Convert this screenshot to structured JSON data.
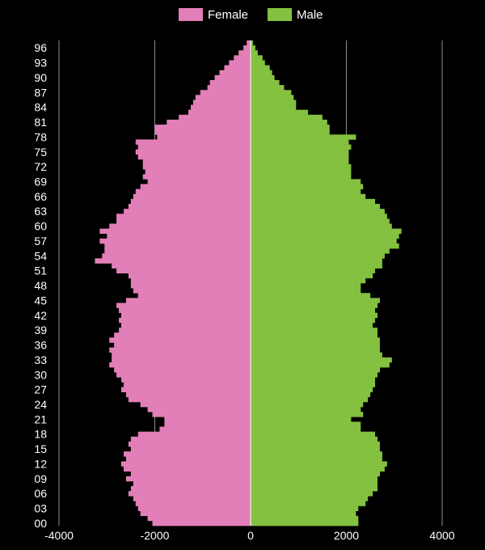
{
  "chart_data": {
    "type": "bar",
    "orientation": "horizontal",
    "layout": "population-pyramid",
    "title": "",
    "xlabel": "",
    "ylabel": "",
    "xlim": [
      -4000,
      4000
    ],
    "x_ticks": [
      -4000,
      -2000,
      0,
      2000,
      4000
    ],
    "x_tick_labels": [
      "-4000",
      "-2000",
      "0",
      "2000",
      "4000"
    ],
    "y_tick_labels": [
      "00",
      "03",
      "06",
      "09",
      "12",
      "15",
      "18",
      "21",
      "24",
      "27",
      "30",
      "33",
      "36",
      "39",
      "42",
      "45",
      "48",
      "51",
      "54",
      "57",
      "60",
      "63",
      "66",
      "69",
      "72",
      "75",
      "78",
      "81",
      "84",
      "87",
      "90",
      "93",
      "96"
    ],
    "grid": "vertical",
    "legend_position": "top-center",
    "ages": [
      0,
      1,
      2,
      3,
      4,
      5,
      6,
      7,
      8,
      9,
      10,
      11,
      12,
      13,
      14,
      15,
      16,
      17,
      18,
      19,
      20,
      21,
      22,
      23,
      24,
      25,
      26,
      27,
      28,
      29,
      30,
      31,
      32,
      33,
      34,
      35,
      36,
      37,
      38,
      39,
      40,
      41,
      42,
      43,
      44,
      45,
      46,
      47,
      48,
      49,
      50,
      51,
      52,
      53,
      54,
      55,
      56,
      57,
      58,
      59,
      60,
      61,
      62,
      63,
      64,
      65,
      66,
      67,
      68,
      69,
      70,
      71,
      72,
      73,
      74,
      75,
      76,
      77,
      78,
      79,
      80,
      81,
      82,
      83,
      84,
      85,
      86,
      87,
      88,
      89,
      90,
      91,
      92,
      93,
      94,
      95,
      96,
      97
    ],
    "series": [
      {
        "name": "Female",
        "color": "#e27fb8",
        "values": [
          -2050,
          -2150,
          -2300,
          -2350,
          -2400,
          -2450,
          -2550,
          -2500,
          -2450,
          -2600,
          -2500,
          -2650,
          -2700,
          -2600,
          -2650,
          -2500,
          -2550,
          -2500,
          -2350,
          -1900,
          -1800,
          -1800,
          -2050,
          -2150,
          -2300,
          -2550,
          -2600,
          -2700,
          -2650,
          -2700,
          -2800,
          -2850,
          -2950,
          -2900,
          -2900,
          -2950,
          -2850,
          -2950,
          -2850,
          -2750,
          -2700,
          -2750,
          -2700,
          -2750,
          -2800,
          -2600,
          -2350,
          -2450,
          -2500,
          -2500,
          -2550,
          -2800,
          -2900,
          -3250,
          -3100,
          -3050,
          -3050,
          -3150,
          -3000,
          -3150,
          -2950,
          -2800,
          -2800,
          -2650,
          -2550,
          -2500,
          -2450,
          -2400,
          -2300,
          -2150,
          -2250,
          -2200,
          -2250,
          -2250,
          -2350,
          -2400,
          -2350,
          -2400,
          -1950,
          -2000,
          -2000,
          -1750,
          -1500,
          -1300,
          -1250,
          -1200,
          -1150,
          -1050,
          -900,
          -850,
          -750,
          -650,
          -550,
          -450,
          -350,
          -250,
          -150,
          -80
        ]
      },
      {
        "name": "Male",
        "color": "#84c140",
        "values": [
          2250,
          2250,
          2200,
          2250,
          2400,
          2450,
          2550,
          2650,
          2650,
          2650,
          2700,
          2800,
          2850,
          2750,
          2750,
          2700,
          2700,
          2650,
          2600,
          2300,
          2300,
          2100,
          2350,
          2300,
          2350,
          2450,
          2500,
          2550,
          2600,
          2600,
          2650,
          2700,
          2900,
          2950,
          2750,
          2700,
          2700,
          2700,
          2650,
          2650,
          2550,
          2600,
          2650,
          2600,
          2650,
          2700,
          2500,
          2300,
          2300,
          2400,
          2550,
          2600,
          2750,
          2750,
          2800,
          2900,
          3100,
          3050,
          3100,
          3150,
          2950,
          2900,
          2850,
          2800,
          2700,
          2600,
          2400,
          2300,
          2350,
          2300,
          2100,
          2100,
          2100,
          2050,
          2050,
          2050,
          2100,
          2050,
          2200,
          1650,
          1650,
          1600,
          1500,
          1200,
          950,
          950,
          900,
          850,
          700,
          600,
          500,
          450,
          400,
          300,
          250,
          150,
          100,
          50
        ]
      }
    ]
  }
}
